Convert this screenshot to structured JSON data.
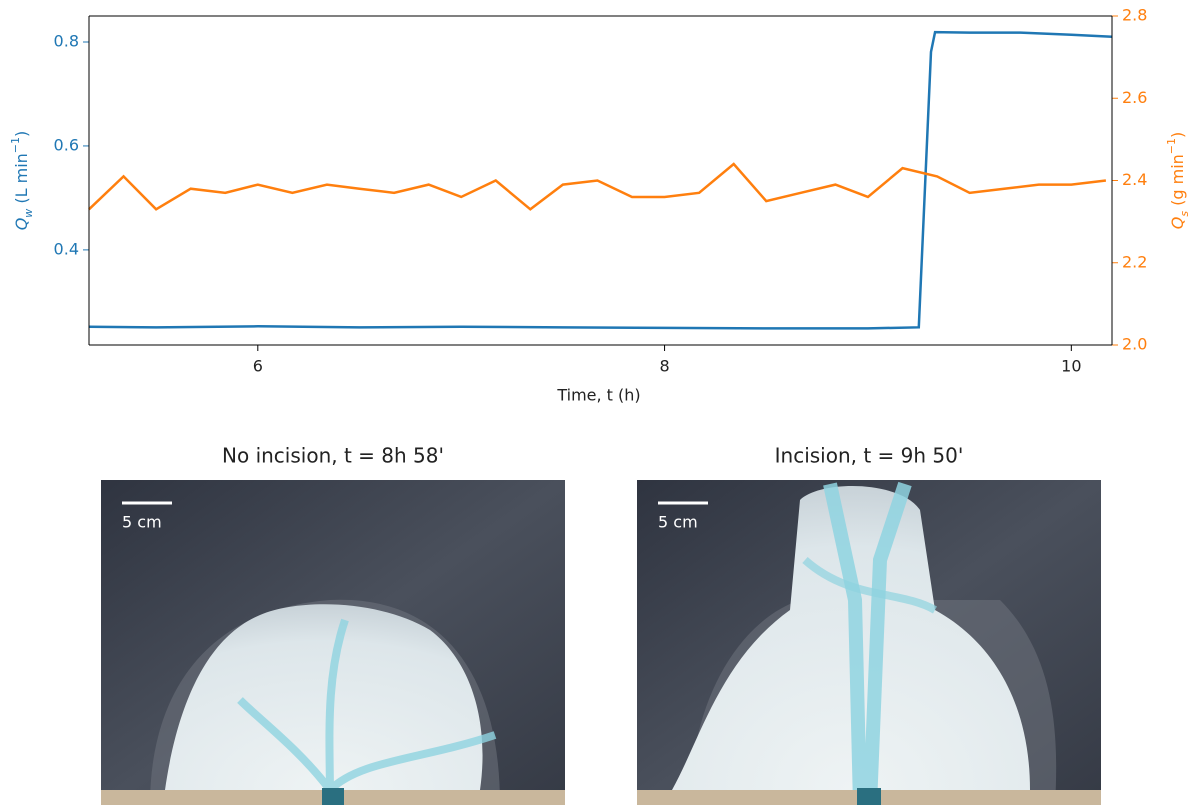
{
  "chart_data": {
    "type": "line",
    "xlabel": "Time, t (h)",
    "ylabel": [
      "Q",
      "w",
      " (L min",
      "−1",
      ")"
    ],
    "y2label": [
      "Q",
      "s",
      " (g min",
      "−1",
      ")"
    ],
    "xlim": [
      5.17,
      10.2
    ],
    "xticks": [
      6,
      8,
      10
    ],
    "ylim": [
      0.217,
      0.85
    ],
    "yticks": [
      0.4,
      0.6,
      0.8
    ],
    "y2lim": [
      2.0,
      2.8
    ],
    "y2ticks": [
      {
        "value": 2,
        "label": "2.0"
      },
      2.2,
      2.4,
      2.6,
      2.8
    ],
    "series": [
      {
        "color": "#1f77b4",
        "x": [
          5.17,
          5.5,
          6.0,
          6.5,
          7.0,
          7.5,
          8.0,
          8.5,
          9.0,
          9.25,
          9.31,
          9.33,
          9.5,
          9.75,
          10.0,
          10.2
        ],
        "values": [
          0.252,
          0.251,
          0.253,
          0.251,
          0.252,
          0.251,
          0.25,
          0.249,
          0.249,
          0.251,
          0.781,
          0.819,
          0.818,
          0.818,
          0.814,
          0.81
        ]
      },
      {
        "color": "#ff7f0e",
        "axis": "y2",
        "x": [
          5.17,
          5.34,
          5.5,
          5.67,
          5.84,
          6.0,
          6.17,
          6.34,
          6.5,
          6.67,
          6.84,
          7.0,
          7.17,
          7.34,
          7.5,
          7.67,
          7.84,
          8.0,
          8.17,
          8.34,
          8.5,
          8.67,
          8.84,
          9.0,
          9.17,
          9.34,
          9.5,
          9.67,
          9.84,
          10.0,
          10.17
        ],
        "values": [
          2.33,
          2.41,
          2.33,
          2.38,
          2.37,
          2.39,
          2.37,
          2.39,
          2.38,
          2.37,
          2.39,
          2.36,
          2.4,
          2.33,
          2.39,
          2.4,
          2.36,
          2.36,
          2.37,
          2.44,
          2.35,
          2.37,
          2.39,
          2.36,
          2.43,
          2.41,
          2.37,
          2.38,
          2.39,
          2.39,
          2.4
        ]
      }
    ]
  },
  "panels": [
    {
      "title": "No incision, t = 8h 58'",
      "scale_bar": "5 cm"
    },
    {
      "title": "Incision, t = 9h 50'",
      "scale_bar": "5 cm"
    }
  ]
}
